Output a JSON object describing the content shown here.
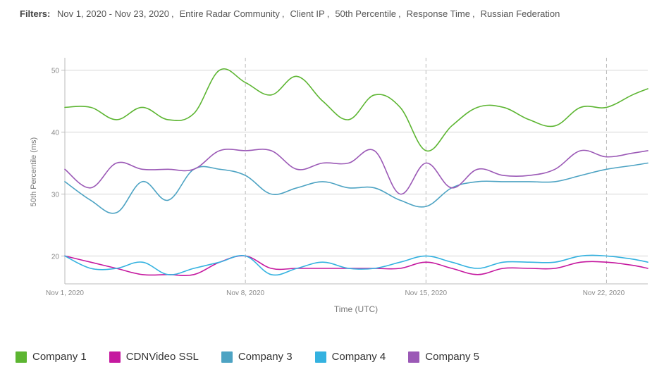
{
  "filters": {
    "label": "Filters:",
    "items": [
      "Nov 1, 2020 - Nov 23, 2020",
      "Entire Radar Community",
      "Client IP",
      "50th Percentile",
      "Response Time",
      "Russian Federation"
    ]
  },
  "chart_data": {
    "type": "line",
    "xlabel": "Time (UTC)",
    "ylabel": "50th Percentile (ms)",
    "ylim": [
      15.5,
      52
    ],
    "xlim": [
      0,
      22.6
    ],
    "y_ticks": [
      20,
      30,
      40,
      50
    ],
    "x_tick_values": [
      0,
      7,
      14,
      21
    ],
    "x_tick_labels": [
      "Nov 1, 2020",
      "Nov 8, 2020",
      "Nov 15, 2020",
      "Nov 22, 2020"
    ],
    "grid": "horizontal",
    "legend_position": "bottom",
    "x": [
      0,
      1,
      2,
      3,
      4,
      5,
      6,
      7,
      8,
      9,
      10,
      11,
      12,
      13,
      14,
      15,
      16,
      17,
      18,
      19,
      20,
      21,
      22,
      22.6
    ],
    "series": [
      {
        "name": "Company 1",
        "color": "#5cb531",
        "values": [
          44,
          44,
          42,
          44,
          42,
          43,
          50,
          48,
          46,
          49,
          45,
          42,
          46,
          44,
          37,
          41,
          44,
          44,
          42,
          41,
          44,
          44,
          46,
          47
        ]
      },
      {
        "name": "CDNVideo SSL",
        "color": "#c5189f",
        "values": [
          20,
          19,
          18,
          17,
          17,
          17,
          19,
          20,
          18,
          18,
          18,
          18,
          18,
          18,
          19,
          18,
          17,
          18,
          18,
          18,
          19,
          19,
          18.5,
          18
        ]
      },
      {
        "name": "Company 3",
        "color": "#4da3c3",
        "values": [
          32,
          29,
          27,
          32,
          29,
          34,
          34,
          33,
          30,
          31,
          32,
          31,
          31,
          29,
          28,
          31,
          32,
          32,
          32,
          32,
          33,
          34,
          34.6,
          35
        ]
      },
      {
        "name": "Company 4",
        "color": "#34b2e0",
        "values": [
          20,
          18,
          18,
          19,
          17,
          18,
          19,
          20,
          17,
          18,
          19,
          18,
          18,
          19,
          20,
          19,
          18,
          19,
          19,
          19,
          20,
          20,
          19.5,
          19
        ]
      },
      {
        "name": "Company 5",
        "color": "#9b59b6",
        "values": [
          34,
          31,
          35,
          34,
          34,
          34,
          37,
          37,
          37,
          34,
          35,
          35,
          37,
          30,
          35,
          31,
          34,
          33,
          33,
          34,
          37,
          36,
          36.6,
          37
        ]
      }
    ]
  }
}
